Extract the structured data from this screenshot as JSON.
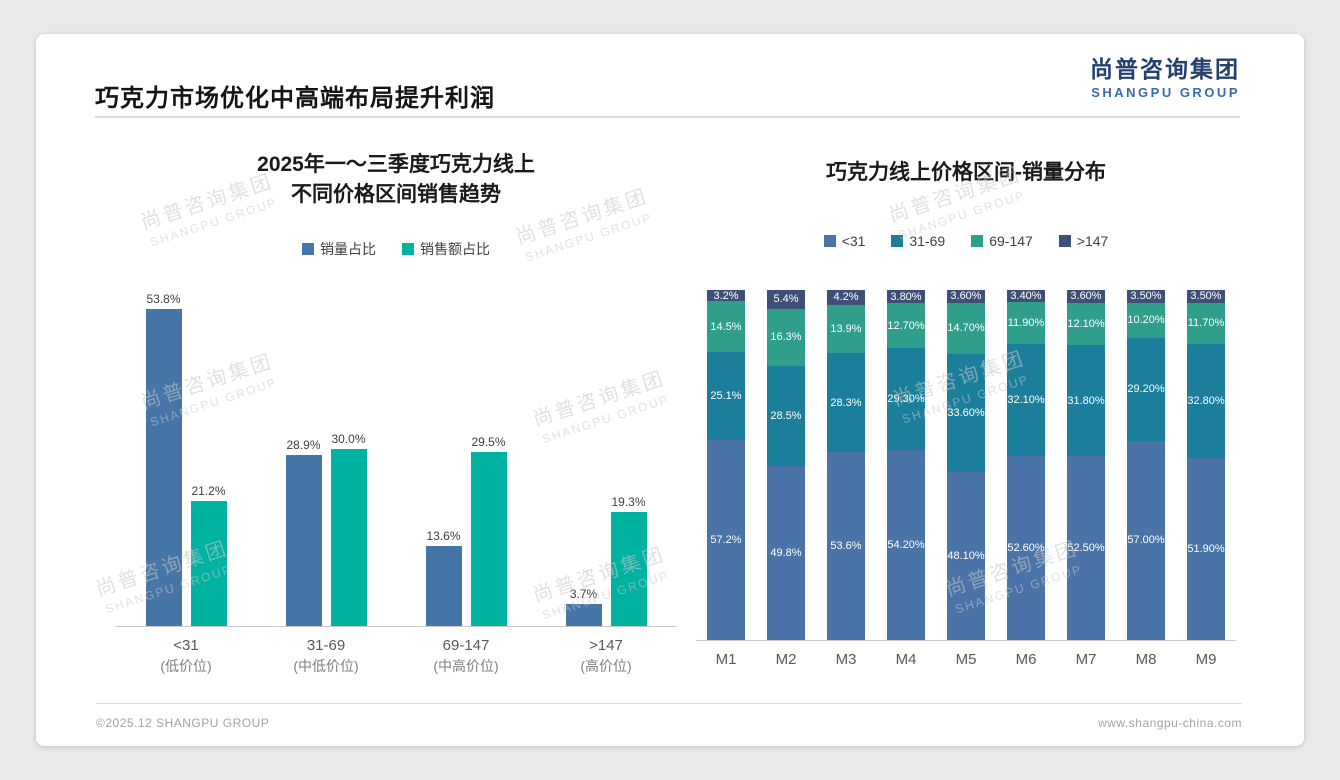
{
  "page": {
    "title": "巧克力市场优化中高端布局提升利润",
    "logo": {
      "cn": "尚普咨询集团",
      "en": "SHANGPU GROUP"
    },
    "watermark": {
      "cn": "尚普咨询集团",
      "en": "SHANGPU GROUP"
    },
    "footer": {
      "left": "©2025.12 SHANGPU GROUP",
      "right": "www.shangpu-china.com"
    }
  },
  "chart_data": [
    {
      "type": "bar",
      "title": "2025年一～三季度巧克力线上不同价格区间销售趋势",
      "title_lines": [
        "2025年一～三季度巧克力线上",
        "不同价格区间销售趋势"
      ],
      "categories": [
        "<31",
        "31-69",
        "69-147",
        ">147"
      ],
      "category_sublabels": [
        "(低价位)",
        "(中低价位)",
        "(中高价位)",
        "(高价位)"
      ],
      "ylim": [
        0,
        60
      ],
      "grid": false,
      "legend_position": "top",
      "series": [
        {
          "name": "销量占比",
          "color": "#4675a8",
          "values": [
            53.8,
            28.9,
            13.6,
            3.7
          ],
          "labels": [
            "53.8%",
            "28.9%",
            "13.6%",
            "3.7%"
          ]
        },
        {
          "name": "销售额占比",
          "color": "#00b2a2",
          "values": [
            21.2,
            30.0,
            29.5,
            19.3
          ],
          "labels": [
            "21.2%",
            "30.0%",
            "29.5%",
            "19.3%"
          ]
        }
      ]
    },
    {
      "type": "bar",
      "subtype": "stacked-100",
      "title": "巧克力线上价格区间-销量分布",
      "categories": [
        "M1",
        "M2",
        "M3",
        "M4",
        "M5",
        "M6",
        "M7",
        "M8",
        "M9"
      ],
      "ylim": [
        0,
        100
      ],
      "grid": false,
      "legend_position": "top",
      "series": [
        {
          "name": "<31",
          "color": "#4a73a8",
          "values": [
            57.2,
            49.8,
            53.6,
            54.2,
            48.1,
            52.6,
            52.5,
            57.0,
            51.9
          ],
          "labels": [
            "57.2%",
            "49.8%",
            "53.6%",
            "54.20%",
            "48.10%",
            "52.60%",
            "52.50%",
            "57.00%",
            "51.90%"
          ]
        },
        {
          "name": "31-69",
          "color": "#1b7f9c",
          "values": [
            25.1,
            28.5,
            28.3,
            29.3,
            33.6,
            32.1,
            31.8,
            29.2,
            32.8
          ],
          "labels": [
            "25.1%",
            "28.5%",
            "28.3%",
            "29.30%",
            "33.60%",
            "32.10%",
            "31.80%",
            "29.20%",
            "32.80%"
          ]
        },
        {
          "name": "69-147",
          "color": "#2f9f8b",
          "values": [
            14.5,
            16.3,
            13.9,
            12.7,
            14.7,
            11.9,
            12.1,
            10.2,
            11.7
          ],
          "labels": [
            "14.5%",
            "16.3%",
            "13.9%",
            "12.70%",
            "14.70%",
            "11.90%",
            "12.10%",
            "10.20%",
            "11.70%"
          ]
        },
        {
          "name": ">147",
          "color": "#3f5078",
          "values": [
            3.2,
            5.4,
            4.2,
            3.8,
            3.6,
            3.4,
            3.6,
            3.5,
            3.5
          ],
          "labels": [
            "3.2%",
            "5.4%",
            "4.2%",
            "3.80%",
            "3.60%",
            "3.40%",
            "3.60%",
            "3.50%",
            "3.50%"
          ]
        }
      ]
    }
  ]
}
